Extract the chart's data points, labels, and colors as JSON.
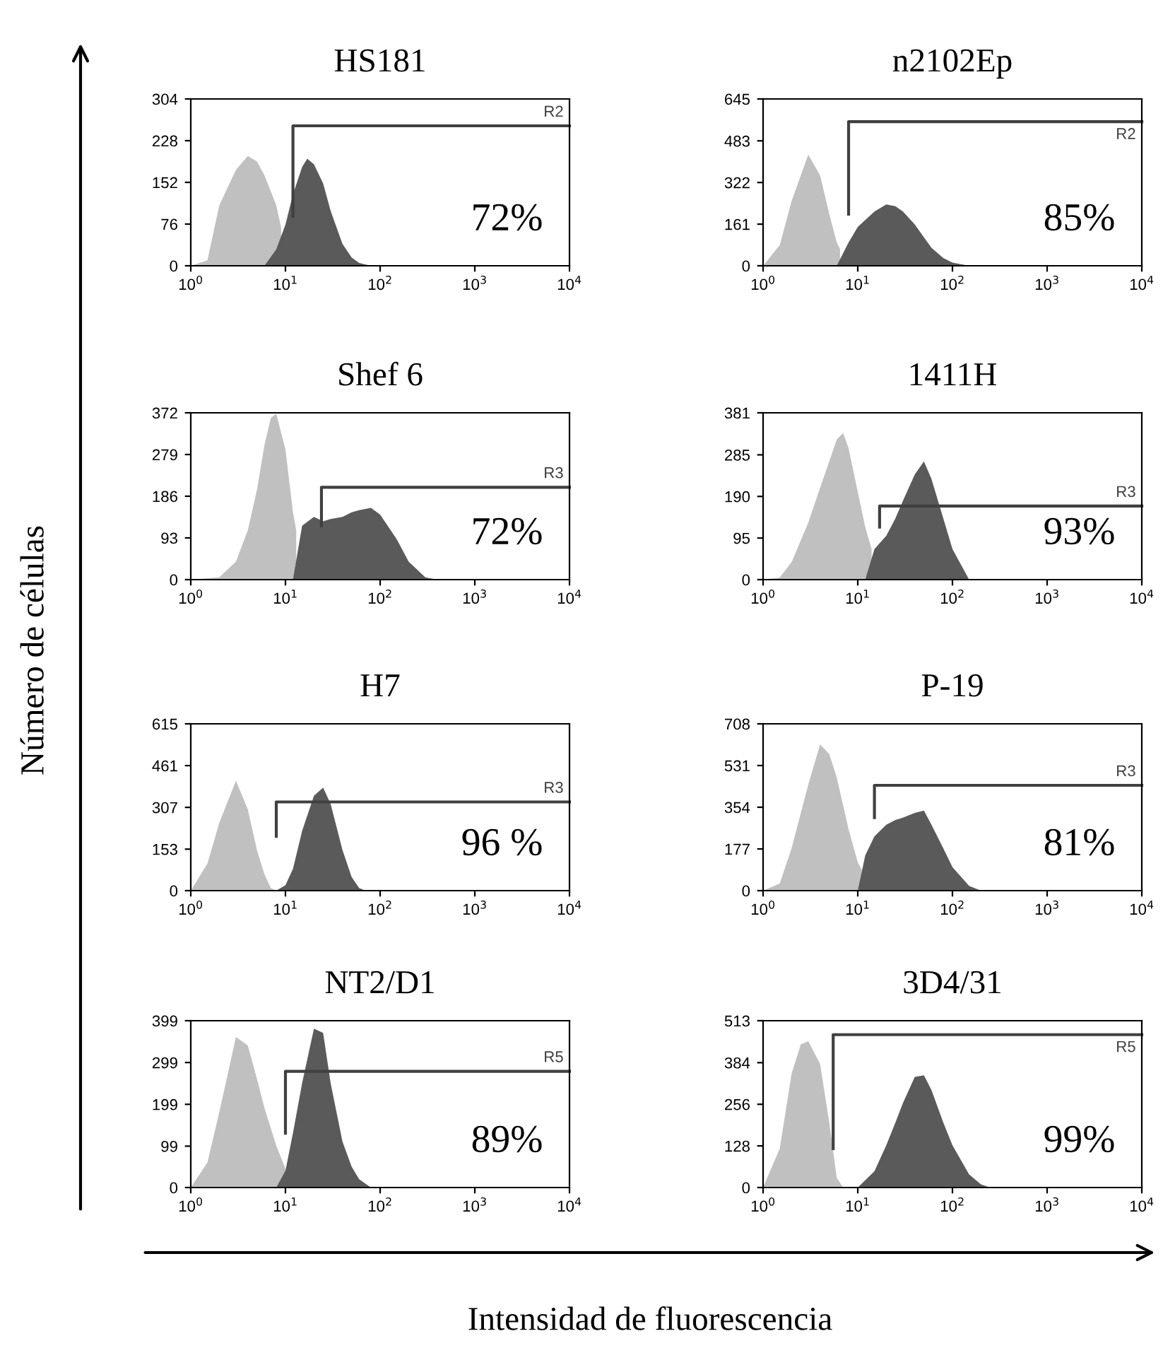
{
  "chart_data": [
    {
      "type": "area",
      "title": "HS181",
      "log": "x",
      "grid": false,
      "xlim": [
        1,
        10000
      ],
      "xticks": [
        {
          "value": 1,
          "label": "10$^{0}$"
        },
        {
          "value": 10,
          "label": "10$^{1}$"
        },
        {
          "value": 100,
          "label": "10$^{2}$"
        },
        {
          "value": 1000,
          "label": "10$^{3}$"
        },
        {
          "value": 10000,
          "label": "10$^{4}$"
        }
      ],
      "ylim": [
        0,
        304
      ],
      "yticks": [
        0,
        76,
        152,
        228,
        304
      ],
      "annotations": [
        "72%"
      ],
      "series": [
        {
          "color": "#c0c0c0",
          "x": [
            1,
            1.5,
            2,
            3,
            4,
            5,
            6,
            8,
            9
          ],
          "values": [
            0,
            10,
            110,
            175,
            200,
            190,
            165,
            110,
            70
          ]
        },
        {
          "color": "#5a5a5a",
          "x": [
            6,
            8,
            10,
            12,
            15,
            17,
            20,
            25,
            30,
            40,
            50,
            60,
            80
          ],
          "values": [
            0,
            30,
            75,
            130,
            180,
            195,
            185,
            150,
            100,
            40,
            15,
            5,
            0
          ]
        },
        {
          "type": "line",
          "name": "R2",
          "color": "#404040",
          "x": [
            12,
            12,
            10000
          ],
          "values": [
            90,
            255,
            255
          ]
        }
      ]
    },
    {
      "type": "area",
      "title": "n2102Ep",
      "log": "x",
      "grid": false,
      "xlim": [
        1,
        10000
      ],
      "xticks": [
        {
          "value": 1,
          "label": "10$^{0}$"
        },
        {
          "value": 10,
          "label": "10$^{1}$"
        },
        {
          "value": 100,
          "label": "10$^{2}$"
        },
        {
          "value": 1000,
          "label": "10$^{3}$"
        },
        {
          "value": 10000,
          "label": "10$^{4}$"
        }
      ],
      "ylim": [
        0,
        645
      ],
      "yticks": [
        0,
        161,
        322,
        483,
        645
      ],
      "annotations": [
        "85%"
      ],
      "series": [
        {
          "color": "#c0c0c0",
          "x": [
            1,
            1.5,
            2,
            3,
            4,
            5,
            6,
            6.5
          ],
          "values": [
            0,
            80,
            250,
            430,
            350,
            200,
            90,
            65
          ]
        },
        {
          "color": "#5a5a5a",
          "x": [
            6,
            8,
            10,
            15,
            20,
            25,
            30,
            40,
            50,
            60,
            80,
            100,
            150
          ],
          "values": [
            0,
            90,
            150,
            210,
            237,
            230,
            210,
            160,
            110,
            70,
            30,
            12,
            0
          ]
        },
        {
          "type": "line",
          "name": "R2",
          "color": "#404040",
          "x": [
            8,
            8,
            10000
          ],
          "values": [
            200,
            557,
            557
          ]
        }
      ]
    },
    {
      "type": "area",
      "title": "Shef 6",
      "log": "x",
      "grid": false,
      "xlim": [
        1,
        10000
      ],
      "xticks": [
        {
          "value": 1,
          "label": "10$^{0}$"
        },
        {
          "value": 10,
          "label": "10$^{1}$"
        },
        {
          "value": 100,
          "label": "10$^{2}$"
        },
        {
          "value": 1000,
          "label": "10$^{3}$"
        },
        {
          "value": 10000,
          "label": "10$^{4}$"
        }
      ],
      "ylim": [
        0,
        372
      ],
      "yticks": [
        0,
        93,
        186,
        279,
        372
      ],
      "annotations": [
        "72%"
      ],
      "series": [
        {
          "color": "#c0c0c0",
          "x": [
            1,
            2,
            3,
            4,
            5,
            6,
            7,
            8,
            10,
            12,
            13
          ],
          "values": [
            0,
            5,
            40,
            110,
            200,
            300,
            360,
            370,
            290,
            150,
            110
          ]
        },
        {
          "color": "#5a5a5a",
          "x": [
            12,
            15,
            20,
            25,
            30,
            40,
            50,
            60,
            80,
            100,
            150,
            200,
            300,
            400
          ],
          "values": [
            0,
            120,
            140,
            130,
            135,
            140,
            150,
            155,
            160,
            145,
            90,
            40,
            5,
            0
          ]
        },
        {
          "type": "line",
          "name": "R3",
          "color": "#404040",
          "x": [
            24,
            24,
            10000
          ],
          "values": [
            120,
            206,
            206
          ]
        }
      ]
    },
    {
      "type": "area",
      "title": "1411H",
      "log": "x",
      "grid": false,
      "xlim": [
        1,
        10000
      ],
      "xticks": [
        {
          "value": 1,
          "label": "10$^{0}$"
        },
        {
          "value": 10,
          "label": "10$^{1}$"
        },
        {
          "value": 100,
          "label": "10$^{2}$"
        },
        {
          "value": 1000,
          "label": "10$^{3}$"
        },
        {
          "value": 10000,
          "label": "10$^{4}$"
        }
      ],
      "ylim": [
        0,
        381
      ],
      "yticks": [
        0,
        95,
        190,
        285,
        381
      ],
      "annotations": [
        "93%"
      ],
      "series": [
        {
          "color": "#c0c0c0",
          "x": [
            1,
            1.5,
            2,
            3,
            4,
            5,
            6,
            7,
            8,
            10,
            12,
            14
          ],
          "values": [
            0,
            5,
            40,
            130,
            210,
            270,
            320,
            335,
            300,
            200,
            120,
            70
          ]
        },
        {
          "color": "#5a5a5a",
          "x": [
            12,
            15,
            20,
            25,
            30,
            40,
            50,
            60,
            80,
            100,
            150
          ],
          "values": [
            0,
            70,
            100,
            140,
            180,
            240,
            270,
            230,
            140,
            70,
            0
          ]
        },
        {
          "type": "line",
          "name": "R3",
          "color": "#404040",
          "x": [
            17,
            17,
            10000
          ],
          "values": [
            120,
            168,
            168
          ]
        }
      ]
    },
    {
      "type": "area",
      "title": "H7",
      "ylabel": "Número de células",
      "log": "x",
      "grid": false,
      "xlim": [
        1,
        10000
      ],
      "xticks": [
        {
          "value": 1,
          "label": "10$^{0}$"
        },
        {
          "value": 10,
          "label": "10$^{1}$"
        },
        {
          "value": 100,
          "label": "10$^{2}$"
        },
        {
          "value": 1000,
          "label": "10$^{3}$"
        },
        {
          "value": 10000,
          "label": "10$^{4}$"
        }
      ],
      "ylim": [
        0,
        615
      ],
      "yticks": [
        0,
        153,
        307,
        461,
        615
      ],
      "annotations": [
        "96 %"
      ],
      "series": [
        {
          "color": "#c0c0c0",
          "x": [
            1,
            1.5,
            2,
            3,
            4,
            5,
            6,
            7,
            8
          ],
          "values": [
            0,
            100,
            250,
            405,
            300,
            150,
            60,
            10,
            0
          ]
        },
        {
          "color": "#5a5a5a",
          "x": [
            8,
            10,
            12,
            15,
            20,
            25,
            30,
            40,
            50,
            60,
            70
          ],
          "values": [
            0,
            20,
            80,
            220,
            350,
            380,
            320,
            150,
            50,
            10,
            0
          ]
        },
        {
          "type": "line",
          "name": "R3",
          "color": "#404040",
          "x": [
            8,
            8,
            10000
          ],
          "values": [
            200,
            327,
            327
          ]
        }
      ]
    },
    {
      "type": "area",
      "title": "P-19",
      "log": "x",
      "grid": false,
      "xlim": [
        1,
        10000
      ],
      "xticks": [
        {
          "value": 1,
          "label": "10$^{0}$"
        },
        {
          "value": 10,
          "label": "10$^{1}$"
        },
        {
          "value": 100,
          "label": "10$^{2}$"
        },
        {
          "value": 1000,
          "label": "10$^{3}$"
        },
        {
          "value": 10000,
          "label": "10$^{4}$"
        }
      ],
      "ylim": [
        0,
        708
      ],
      "yticks": [
        0,
        177,
        354,
        531,
        708
      ],
      "annotations": [
        "81%"
      ],
      "series": [
        {
          "color": "#c0c0c0",
          "x": [
            1,
            1.5,
            2,
            3,
            4,
            5,
            6,
            8,
            10,
            11
          ],
          "values": [
            0,
            30,
            180,
            450,
            620,
            580,
            480,
            260,
            120,
            90
          ]
        },
        {
          "color": "#5a5a5a",
          "x": [
            10,
            12,
            15,
            20,
            25,
            30,
            40,
            50,
            60,
            80,
            100,
            150,
            200
          ],
          "values": [
            0,
            150,
            230,
            280,
            300,
            310,
            330,
            340,
            280,
            180,
            100,
            20,
            0
          ]
        },
        {
          "type": "line",
          "name": "R3",
          "color": "#404040",
          "x": [
            15,
            15,
            10000
          ],
          "values": [
            310,
            447,
            447
          ]
        }
      ]
    },
    {
      "type": "area",
      "title": "NT2/D1",
      "xlabel": "Intensidad de fluorescencia",
      "log": "x",
      "grid": false,
      "xlim": [
        1,
        10000
      ],
      "xticks": [
        {
          "value": 1,
          "label": "10$^{0}$"
        },
        {
          "value": 10,
          "label": "10$^{1}$"
        },
        {
          "value": 100,
          "label": "10$^{2}$"
        },
        {
          "value": 1000,
          "label": "10$^{3}$"
        },
        {
          "value": 10000,
          "label": "10$^{4}$"
        }
      ],
      "ylim": [
        0,
        399
      ],
      "yticks": [
        0,
        99,
        199,
        299,
        399
      ],
      "annotations": [
        "89%"
      ],
      "series": [
        {
          "color": "#c0c0c0",
          "x": [
            1,
            1.5,
            2,
            3,
            4,
            5,
            6,
            8,
            10
          ],
          "values": [
            0,
            60,
            180,
            360,
            340,
            260,
            190,
            100,
            45
          ]
        },
        {
          "color": "#5a5a5a",
          "x": [
            8,
            10,
            12,
            15,
            20,
            25,
            30,
            40,
            50,
            60,
            80
          ],
          "values": [
            0,
            40,
            130,
            250,
            380,
            370,
            250,
            110,
            50,
            20,
            0
          ]
        },
        {
          "type": "line",
          "name": "R5",
          "color": "#404040",
          "x": [
            10,
            10,
            10000
          ],
          "values": [
            130,
            278,
            278
          ]
        }
      ]
    },
    {
      "type": "area",
      "title": "3D4/31",
      "log": "x",
      "grid": false,
      "xlim": [
        1,
        10000
      ],
      "xticks": [
        {
          "value": 1,
          "label": "10$^{0}$"
        },
        {
          "value": 10,
          "label": "10$^{1}$"
        },
        {
          "value": 100,
          "label": "10$^{2}$"
        },
        {
          "value": 1000,
          "label": "10$^{3}$"
        },
        {
          "value": 10000,
          "label": "10$^{4}$"
        }
      ],
      "ylim": [
        0,
        513
      ],
      "yticks": [
        0,
        128,
        256,
        384,
        513
      ],
      "annotations": [
        "99%"
      ],
      "series": [
        {
          "color": "#c0c0c0",
          "x": [
            1,
            1.5,
            2,
            2.5,
            3,
            4,
            5,
            6,
            7
          ],
          "values": [
            0,
            120,
            350,
            440,
            450,
            380,
            200,
            30,
            0
          ]
        },
        {
          "color": "#5a5a5a",
          "x": [
            10,
            15,
            20,
            25,
            30,
            40,
            50,
            60,
            80,
            100,
            150,
            200,
            250
          ],
          "values": [
            0,
            50,
            130,
            200,
            260,
            340,
            345,
            300,
            200,
            130,
            40,
            10,
            0
          ]
        },
        {
          "type": "line",
          "name": "R5",
          "color": "#404040",
          "x": [
            5.5,
            5.5,
            10000
          ],
          "values": [
            120,
            470,
            470
          ]
        }
      ]
    }
  ]
}
